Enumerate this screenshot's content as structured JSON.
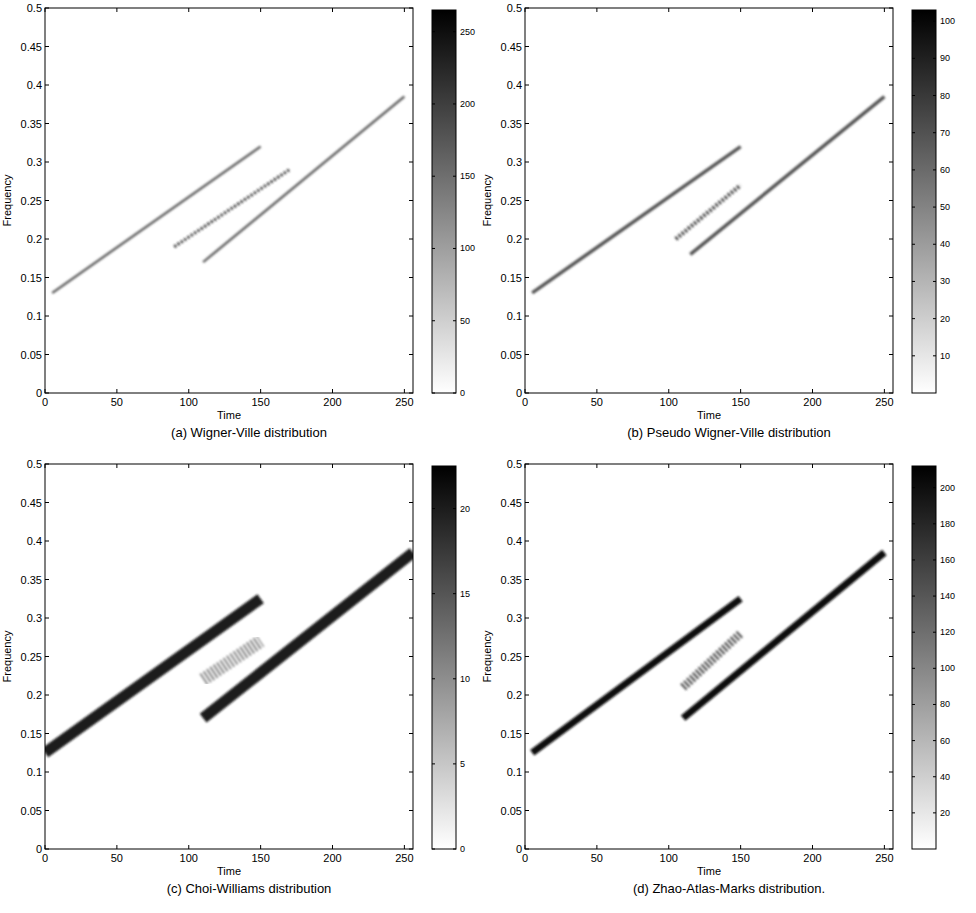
{
  "chart_data": [
    {
      "type": "line",
      "title": "(a) Wigner-Ville distribution",
      "xlabel": "Time",
      "ylabel": "Frequency",
      "xlim": [
        0,
        256
      ],
      "xticks": [
        0,
        50,
        100,
        150,
        200,
        250
      ],
      "ylim": [
        0,
        0.5
      ],
      "yticks": [
        0,
        0.05,
        0.1,
        0.15,
        0.2,
        0.25,
        0.3,
        0.35,
        0.4,
        0.45,
        0.5
      ],
      "colorbar": {
        "range": [
          0,
          265
        ],
        "ticks": [
          0,
          50,
          100,
          150,
          200,
          250
        ]
      },
      "series": [
        {
          "color": "#666666",
          "line_style": "solid",
          "x": [
            5,
            150
          ],
          "values": [
            0.13,
            0.32
          ]
        },
        {
          "color": "#666666",
          "line_style": "solid",
          "x": [
            110,
            250
          ],
          "values": [
            0.17,
            0.385
          ]
        },
        {
          "color": "#222222",
          "line_style": "dotted",
          "x": [
            90,
            170
          ],
          "values": [
            0.19,
            0.29
          ]
        }
      ]
    },
    {
      "type": "line",
      "title": "(b) Pseudo Wigner-Ville distribution",
      "xlabel": "Time",
      "ylabel": "Frequency",
      "xlim": [
        0,
        256
      ],
      "xticks": [
        0,
        50,
        100,
        150,
        200,
        250
      ],
      "ylim": [
        0,
        0.5
      ],
      "yticks": [
        0,
        0.05,
        0.1,
        0.15,
        0.2,
        0.25,
        0.3,
        0.35,
        0.4,
        0.45,
        0.5
      ],
      "colorbar": {
        "range": [
          0,
          103
        ],
        "ticks": [
          10,
          20,
          30,
          40,
          50,
          60,
          70,
          80,
          90,
          100
        ]
      },
      "series": [
        {
          "color": "#555555",
          "line_style": "solid",
          "x": [
            5,
            150
          ],
          "values": [
            0.13,
            0.32
          ]
        },
        {
          "color": "#555555",
          "line_style": "solid",
          "x": [
            115,
            250
          ],
          "values": [
            0.18,
            0.385
          ]
        },
        {
          "color": "#333333",
          "line_style": "dotted",
          "x": [
            105,
            150
          ],
          "values": [
            0.2,
            0.27
          ]
        }
      ]
    },
    {
      "type": "line",
      "title": "(c) Choi-Williams distribution",
      "xlabel": "Time",
      "ylabel": "Frequency",
      "xlim": [
        0,
        256
      ],
      "xticks": [
        0,
        50,
        100,
        150,
        200,
        250
      ],
      "ylim": [
        0,
        0.5
      ],
      "yticks": [
        0,
        0.05,
        0.1,
        0.15,
        0.2,
        0.25,
        0.3,
        0.35,
        0.4,
        0.45,
        0.5
      ],
      "colorbar": {
        "range": [
          0,
          22.5
        ],
        "ticks": [
          0,
          5,
          10,
          15,
          20
        ]
      },
      "series": [
        {
          "color": "#1a1a1a",
          "line_style": "solid",
          "x": [
            0,
            150
          ],
          "values": [
            0.125,
            0.325
          ]
        },
        {
          "color": "#1a1a1a",
          "line_style": "solid",
          "x": [
            110,
            256
          ],
          "values": [
            0.17,
            0.385
          ]
        },
        {
          "color": "#888888",
          "line_style": "dotted",
          "x": [
            110,
            150
          ],
          "values": [
            0.22,
            0.27
          ]
        }
      ]
    },
    {
      "type": "line",
      "title": "(d) Zhao-Atlas-Marks distribution.",
      "xlabel": "Time",
      "ylabel": "Frequency",
      "xlim": [
        0,
        256
      ],
      "xticks": [
        0,
        50,
        100,
        150,
        200,
        250
      ],
      "ylim": [
        0,
        0.5
      ],
      "yticks": [
        0,
        0.05,
        0.1,
        0.15,
        0.2,
        0.25,
        0.3,
        0.35,
        0.4,
        0.45,
        0.5
      ],
      "colorbar": {
        "range": [
          0,
          212
        ],
        "ticks": [
          20,
          40,
          60,
          80,
          100,
          120,
          140,
          160,
          180,
          200
        ]
      },
      "series": [
        {
          "color": "#111111",
          "line_style": "solid",
          "x": [
            5,
            150
          ],
          "values": [
            0.125,
            0.325
          ]
        },
        {
          "color": "#111111",
          "line_style": "solid",
          "x": [
            110,
            250
          ],
          "values": [
            0.17,
            0.385
          ]
        },
        {
          "color": "#444444",
          "line_style": "dotted",
          "x": [
            110,
            150
          ],
          "values": [
            0.21,
            0.28
          ]
        }
      ]
    }
  ]
}
